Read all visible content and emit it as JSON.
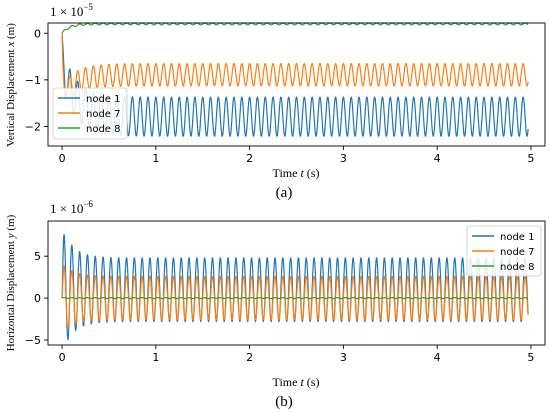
{
  "chart_data": [
    {
      "type": "line",
      "panel_label": "(a)",
      "scale_note": "1 × 10",
      "scale_exponent": "−5",
      "xlabel_prefix": "Time ",
      "xlabel_var": "t",
      "xlabel_suffix": " (s)",
      "ylabel_prefix": "Vertical Displacement ",
      "ylabel_var": "x",
      "ylabel_suffix": " (m)",
      "xlim": [
        -0.15,
        5.15
      ],
      "ylim": [
        -2.42,
        0.22
      ],
      "xticks": [
        0,
        1,
        2,
        3,
        4,
        5
      ],
      "yticks": [
        0,
        -1,
        -2
      ],
      "grid": false,
      "legend_position": "lower-left",
      "series": [
        {
          "name": "node 1",
          "color": "#1f77b4",
          "mean": -1.79,
          "amplitude": 0.42,
          "frequency_hz": 12,
          "start_value": 0.0,
          "dip_value": -0.75,
          "dip_time": 0.03,
          "x_end": 4.97
        },
        {
          "name": "node 7",
          "color": "#ff7f0e",
          "mean": -0.89,
          "amplitude": 0.24,
          "frequency_hz": 12,
          "start_value": 0.0,
          "dip_value": -1.35,
          "dip_time": 0.04,
          "x_end": 4.97
        },
        {
          "name": "node 8",
          "color": "#2ca02c",
          "mean": 0.2,
          "amplitude": 0.02,
          "frequency_hz": 12,
          "start_value": 0.0,
          "x_end": 4.97
        }
      ]
    },
    {
      "type": "line",
      "panel_label": "(b)",
      "scale_note": "1 × 10",
      "scale_exponent": "−6",
      "xlabel_prefix": "Time ",
      "xlabel_var": "t",
      "xlabel_suffix": " (s)",
      "ylabel_prefix": "Horizontal Displacement ",
      "ylabel_var": "y",
      "ylabel_suffix": " (m)",
      "xlim": [
        -0.15,
        5.15
      ],
      "ylim": [
        -5.6,
        9.2
      ],
      "xticks": [
        0,
        1,
        2,
        3,
        4,
        5
      ],
      "yticks": [
        5,
        0,
        -5
      ],
      "grid": false,
      "legend_position": "upper-right",
      "series": [
        {
          "name": "node 1",
          "color": "#1f77b4",
          "mean": 1.0,
          "amplitude": 3.8,
          "amplitude_peak": 7.4,
          "frequency_hz": 12,
          "start_value": 0.0,
          "x_end": 4.97
        },
        {
          "name": "node 7",
          "color": "#ff7f0e",
          "mean": 0.0,
          "amplitude": 2.6,
          "amplitude_peak": 4.2,
          "frequency_hz": 12,
          "start_value": 0.0,
          "x_end": 4.97
        },
        {
          "name": "node 8",
          "color": "#2ca02c",
          "mean": 0.0,
          "amplitude": 0.05,
          "frequency_hz": 12,
          "start_value": 0.0,
          "x_end": 4.97
        }
      ]
    }
  ]
}
